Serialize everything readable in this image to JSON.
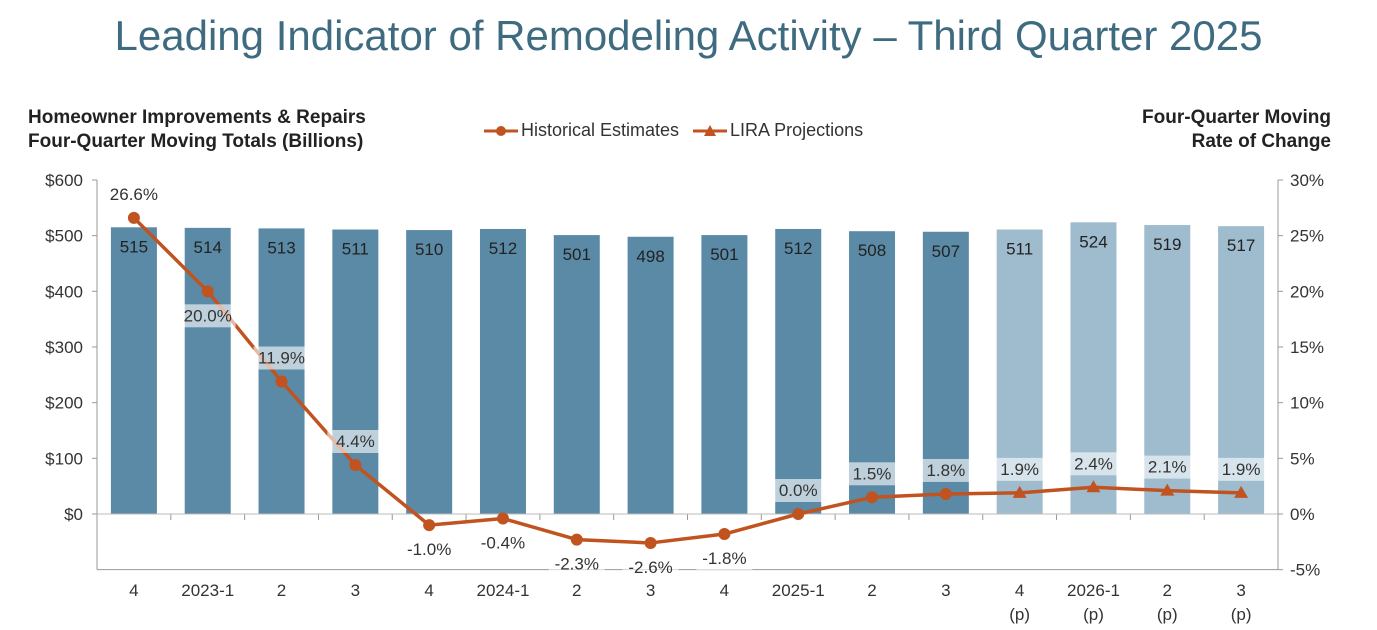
{
  "chart_data": {
    "type": "bar",
    "title": "Leading Indicator of Remodeling Activity – Third Quarter 2025",
    "ylabel_left": [
      "Homeowner Improvements & Repairs",
      "Four-Quarter Moving Totals (Billions)"
    ],
    "ylabel_right": [
      "Four-Quarter Moving",
      "Rate of Change"
    ],
    "categories": [
      [
        "4",
        ""
      ],
      [
        "2023-1",
        ""
      ],
      [
        "2",
        ""
      ],
      [
        "3",
        ""
      ],
      [
        "4",
        ""
      ],
      [
        "2024-1",
        ""
      ],
      [
        "2",
        ""
      ],
      [
        "3",
        ""
      ],
      [
        "4",
        ""
      ],
      [
        "2025-1",
        ""
      ],
      [
        "2",
        ""
      ],
      [
        "3",
        ""
      ],
      [
        "4",
        "(p)"
      ],
      [
        "2026-1",
        "(p)"
      ],
      [
        "2",
        "(p)"
      ],
      [
        "3",
        "(p)"
      ]
    ],
    "bars": {
      "values": [
        515,
        514,
        513,
        511,
        510,
        512,
        501,
        498,
        501,
        512,
        508,
        507,
        511,
        524,
        519,
        517
      ],
      "projected": [
        false,
        false,
        false,
        false,
        false,
        false,
        false,
        false,
        false,
        false,
        false,
        false,
        true,
        true,
        true,
        true
      ]
    },
    "series": [
      {
        "name": "Historical Estimates",
        "marker": "circle",
        "values": [
          26.6,
          20.0,
          11.9,
          4.4,
          -1.0,
          -0.4,
          -2.3,
          -2.6,
          -1.8,
          0.0,
          1.5,
          1.8,
          null,
          null,
          null,
          null
        ]
      },
      {
        "name": "LIRA Projections",
        "marker": "triangle",
        "values": [
          null,
          null,
          null,
          null,
          null,
          null,
          null,
          null,
          null,
          null,
          null,
          1.8,
          1.9,
          2.4,
          2.1,
          1.9
        ]
      }
    ],
    "rate_labels": [
      "26.6%",
      "20.0%",
      "11.9%",
      "4.4%",
      "-1.0%",
      "-0.4%",
      "-2.3%",
      "-2.6%",
      "-1.8%",
      "0.0%",
      "1.5%",
      "1.8%",
      "1.9%",
      "2.4%",
      "2.1%",
      "1.9%"
    ],
    "left_ticks": [
      "$0",
      "$100",
      "$200",
      "$300",
      "$400",
      "$500",
      "$600"
    ],
    "left_tick_values": [
      0,
      100,
      200,
      300,
      400,
      500,
      600
    ],
    "right_ticks": [
      "-5%",
      "0%",
      "5%",
      "10%",
      "15%",
      "20%",
      "25%",
      "30%"
    ],
    "right_tick_values": [
      -5,
      0,
      5,
      10,
      15,
      20,
      25,
      30
    ],
    "ylim_left": [
      -100,
      600
    ],
    "ylim_right": [
      -5,
      30
    ],
    "legend_position": "top-center",
    "colors": {
      "bar": "#5a8aa6",
      "bar_projected": "#9ebccd",
      "line": "#c0531f",
      "title": "#3e6b80"
    }
  }
}
